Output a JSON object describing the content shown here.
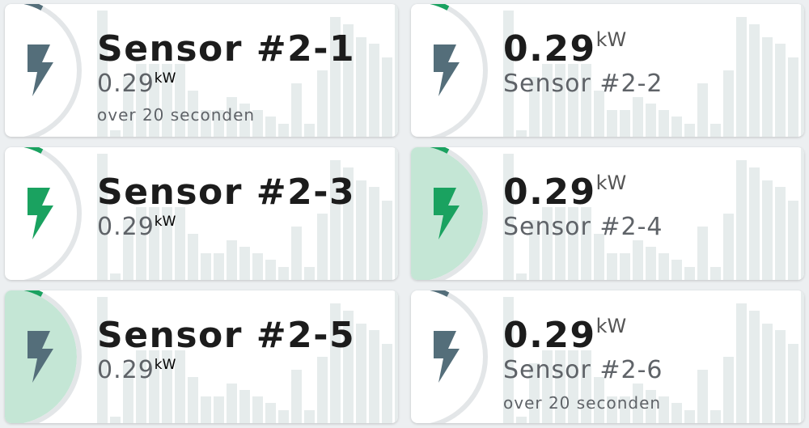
{
  "colors": {
    "accent_green": "#1aa260",
    "icon_gray": "#546e7a",
    "pale_green": "#c4e6d5",
    "background": "#eceff1"
  },
  "history_bars": [
    0.95,
    0.05,
    0.45,
    0.55,
    0.55,
    0.55,
    0.55,
    0.35,
    0.2,
    0.2,
    0.3,
    0.25,
    0.2,
    0.15,
    0.1,
    0.4,
    0.1,
    0.5,
    0.9,
    0.85,
    0.75,
    0.7,
    0.6,
    1.0,
    0.55
  ],
  "cards": [
    {
      "name": "Sensor #2-1",
      "value": "0.29",
      "unit": "kW",
      "period": "over 20 seconden",
      "layout": "name-first",
      "icon": "flash-icon",
      "icon_color": "#546e7a",
      "arc_color": "#546e7a",
      "fill": null
    },
    {
      "name": "Sensor #2-2",
      "value": "0.29",
      "unit": "kW",
      "period": "",
      "layout": "value-first",
      "icon": "flash-icon",
      "icon_color": "#546e7a",
      "arc_color": "#1aa260",
      "fill": null
    },
    {
      "name": "Sensor #2-3",
      "value": "0.29",
      "unit": "kW",
      "period": "",
      "layout": "name-first",
      "icon": "flash-icon",
      "icon_color": "#1aa260",
      "arc_color": "#1aa260",
      "fill": null
    },
    {
      "name": "Sensor #2-4",
      "value": "0.29",
      "unit": "kW",
      "period": "",
      "layout": "value-first",
      "icon": "flash-icon",
      "icon_color": "#1aa260",
      "arc_color": "#1aa260",
      "fill": "#c4e6d5"
    },
    {
      "name": "Sensor #2-5",
      "value": "0.29",
      "unit": "kW",
      "period": "",
      "layout": "name-first",
      "icon": "flash-icon",
      "icon_color": "#546e7a",
      "arc_color": "#1aa260",
      "fill": "#c4e6d5"
    },
    {
      "name": "Sensor #2-6",
      "value": "0.29",
      "unit": "kW",
      "period": "over 20 seconden",
      "layout": "value-first",
      "icon": "flash-icon",
      "icon_color": "#546e7a",
      "arc_color": "#546e7a",
      "fill": null
    }
  ]
}
